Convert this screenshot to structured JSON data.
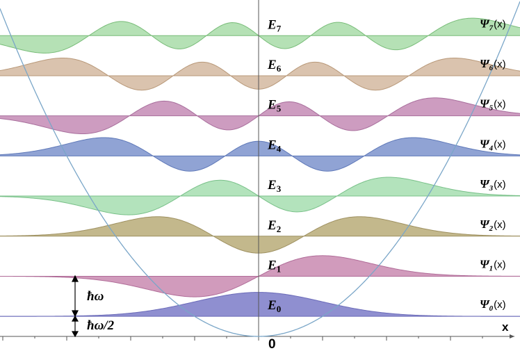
{
  "levels": [
    {
      "energy": {
        "symbol": "E",
        "index": "0"
      },
      "wavefunction": {
        "symbol": "Ψ",
        "index": "0",
        "arg": "(x)"
      }
    },
    {
      "energy": {
        "symbol": "E",
        "index": "1"
      },
      "wavefunction": {
        "symbol": "Ψ",
        "index": "1",
        "arg": "(x)"
      }
    },
    {
      "energy": {
        "symbol": "E",
        "index": "2"
      },
      "wavefunction": {
        "symbol": "Ψ",
        "index": "2",
        "arg": "(x)"
      }
    },
    {
      "energy": {
        "symbol": "E",
        "index": "3"
      },
      "wavefunction": {
        "symbol": "Ψ",
        "index": "3",
        "arg": "(x)"
      }
    },
    {
      "energy": {
        "symbol": "E",
        "index": "4"
      },
      "wavefunction": {
        "symbol": "Ψ",
        "index": "4",
        "arg": "(x)"
      }
    },
    {
      "energy": {
        "symbol": "E",
        "index": "5"
      },
      "wavefunction": {
        "symbol": "Ψ",
        "index": "5",
        "arg": "(x)"
      }
    },
    {
      "energy": {
        "symbol": "E",
        "index": "6"
      },
      "wavefunction": {
        "symbol": "Ψ",
        "index": "6",
        "arg": "(x)"
      }
    },
    {
      "energy": {
        "symbol": "E",
        "index": "7"
      },
      "wavefunction": {
        "symbol": "Ψ",
        "index": "7",
        "arg": "(x)"
      }
    }
  ],
  "spacing_label": "ħω",
  "ground_label": "ħω/2",
  "origin_label": "0",
  "axis_label": "x"
}
